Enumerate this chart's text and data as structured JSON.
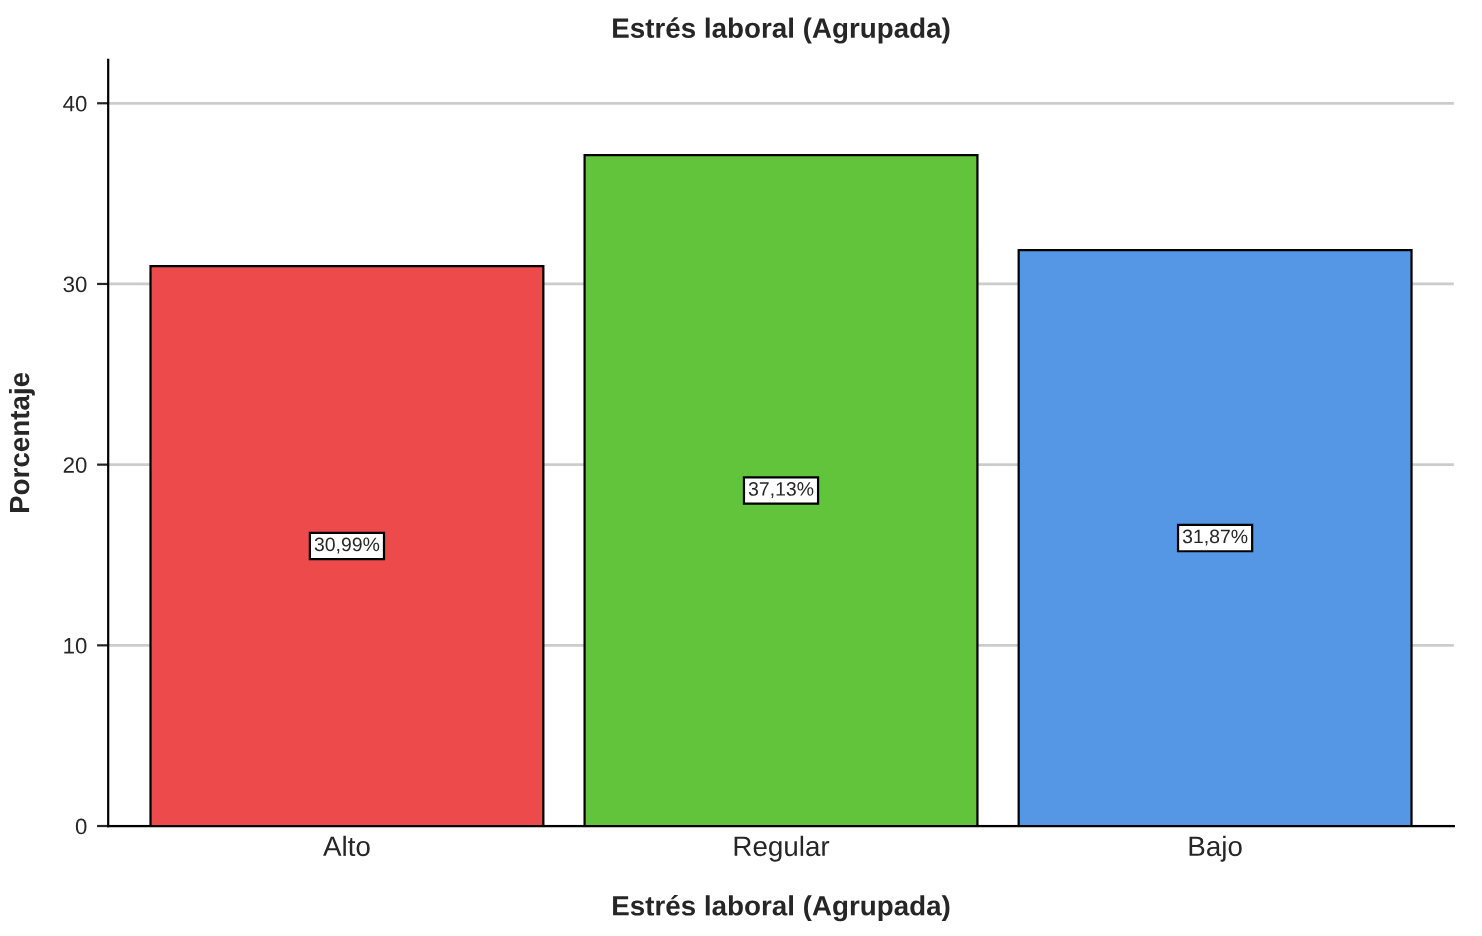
{
  "chart_data": {
    "type": "bar",
    "title": "Estrés laboral (Agrupada)",
    "xlabel": "Estrés laboral (Agrupada)",
    "ylabel": "Porcentaje",
    "categories": [
      "Alto",
      "Regular",
      "Bajo"
    ],
    "values": [
      30.99,
      37.13,
      31.87
    ],
    "colors": [
      "#ec4a4b",
      "#62c43b",
      "#5597e5"
    ],
    "value_labels": [
      "30,99%",
      "37,13%",
      "31,87%"
    ],
    "ylim": [
      0,
      42.4
    ],
    "yticks": [
      0,
      10,
      20,
      30,
      40
    ],
    "grid": "y",
    "legend": false
  }
}
